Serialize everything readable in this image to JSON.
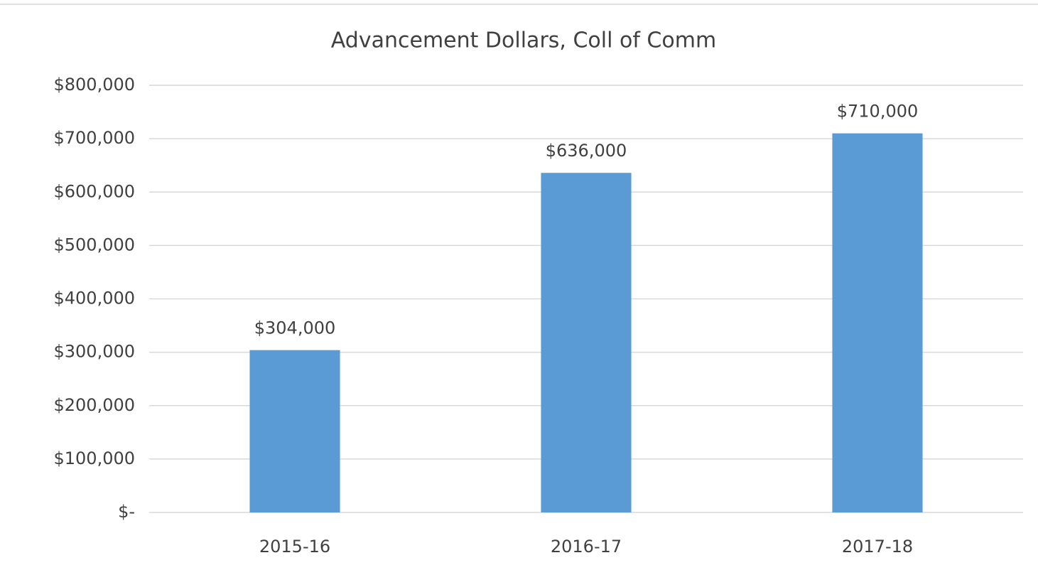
{
  "chart_data": {
    "type": "bar",
    "title": "Advancement Dollars, Coll of Comm",
    "categories": [
      "2015-16",
      "2016-17",
      "2017-18"
    ],
    "values": [
      304000,
      636000,
      710000
    ],
    "value_labels": [
      "$304,000",
      "$636,000",
      "$710,000"
    ],
    "color": "#5b9bd5",
    "ylim": [
      0,
      800000
    ],
    "yticks": [
      {
        "value": 0,
        "label": "$-"
      },
      {
        "value": 100000,
        "label": "$100,000"
      },
      {
        "value": 200000,
        "label": "$200,000"
      },
      {
        "value": 300000,
        "label": "$300,000"
      },
      {
        "value": 400000,
        "label": "$400,000"
      },
      {
        "value": 500000,
        "label": "$500,000"
      },
      {
        "value": 600000,
        "label": "$600,000"
      },
      {
        "value": 700000,
        "label": "$700,000"
      },
      {
        "value": 800000,
        "label": "$800,000"
      }
    ],
    "grid": true
  }
}
